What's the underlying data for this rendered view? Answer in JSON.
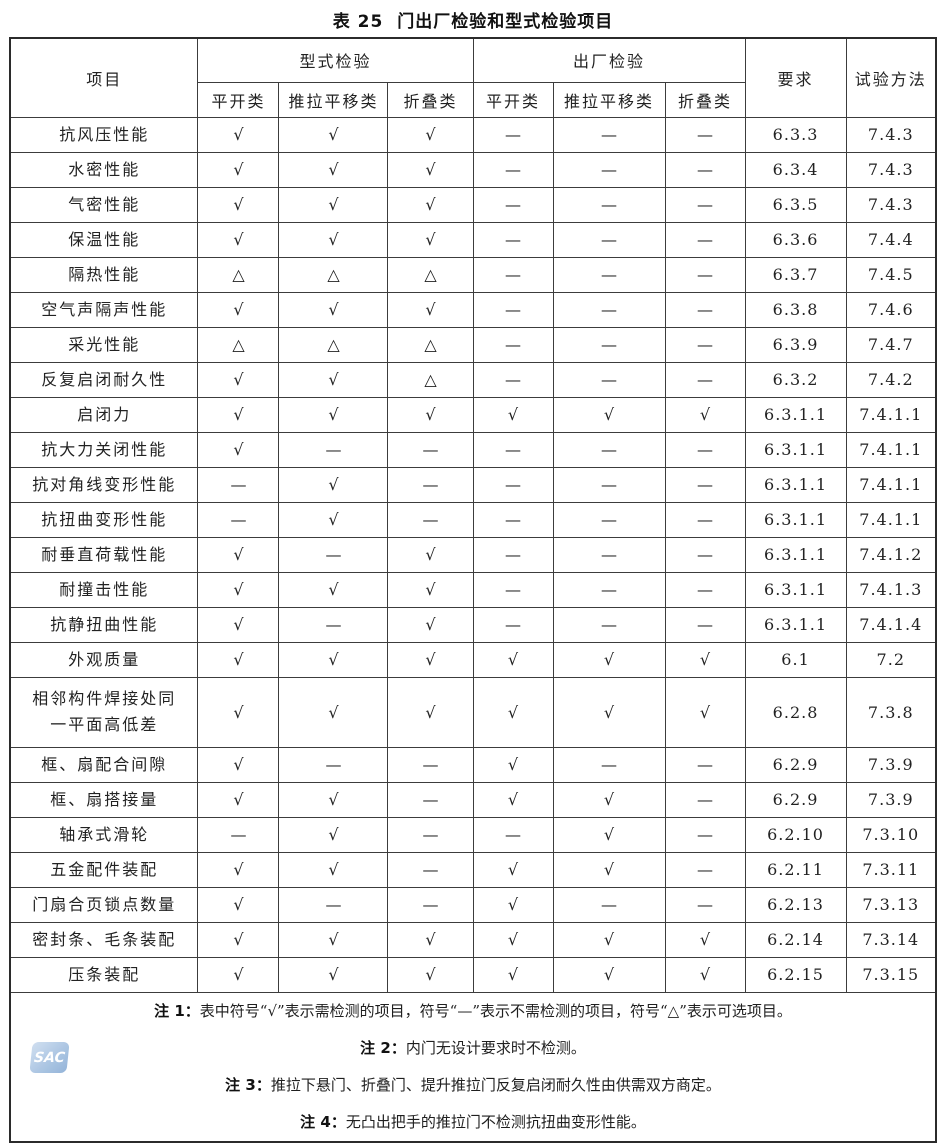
{
  "title": {
    "prefix": "表 25",
    "main": "门出厂检验和型式检验项目"
  },
  "table": {
    "headers": {
      "item": "项目",
      "type_inspection": "型式检验",
      "factory_inspection": "出厂检验",
      "requirement": "要求",
      "test_method": "试验方法",
      "sub": [
        "平开类",
        "推拉平移类",
        "折叠类",
        "平开类",
        "推拉平移类",
        "折叠类"
      ]
    },
    "rows": [
      {
        "item": "抗风压性能",
        "type": [
          "√",
          "√",
          "√"
        ],
        "factory": [
          "—",
          "—",
          "—"
        ],
        "req": "6.3.3",
        "method": "7.4.3"
      },
      {
        "item": "水密性能",
        "type": [
          "√",
          "√",
          "√"
        ],
        "factory": [
          "—",
          "—",
          "—"
        ],
        "req": "6.3.4",
        "method": "7.4.3"
      },
      {
        "item": "气密性能",
        "type": [
          "√",
          "√",
          "√"
        ],
        "factory": [
          "—",
          "—",
          "—"
        ],
        "req": "6.3.5",
        "method": "7.4.3"
      },
      {
        "item": "保温性能",
        "type": [
          "√",
          "√",
          "√"
        ],
        "factory": [
          "—",
          "—",
          "—"
        ],
        "req": "6.3.6",
        "method": "7.4.4"
      },
      {
        "item": "隔热性能",
        "type": [
          "△",
          "△",
          "△"
        ],
        "factory": [
          "—",
          "—",
          "—"
        ],
        "req": "6.3.7",
        "method": "7.4.5"
      },
      {
        "item": "空气声隔声性能",
        "type": [
          "√",
          "√",
          "√"
        ],
        "factory": [
          "—",
          "—",
          "—"
        ],
        "req": "6.3.8",
        "method": "7.4.6"
      },
      {
        "item": "采光性能",
        "type": [
          "△",
          "△",
          "△"
        ],
        "factory": [
          "—",
          "—",
          "—"
        ],
        "req": "6.3.9",
        "method": "7.4.7"
      },
      {
        "item": "反复启闭耐久性",
        "type": [
          "√",
          "√",
          "△"
        ],
        "factory": [
          "—",
          "—",
          "—"
        ],
        "req": "6.3.2",
        "method": "7.4.2"
      },
      {
        "item": "启闭力",
        "type": [
          "√",
          "√",
          "√"
        ],
        "factory": [
          "√",
          "√",
          "√"
        ],
        "req": "6.3.1.1",
        "method": "7.4.1.1"
      },
      {
        "item": "抗大力关闭性能",
        "type": [
          "√",
          "—",
          "—"
        ],
        "factory": [
          "—",
          "—",
          "—"
        ],
        "req": "6.3.1.1",
        "method": "7.4.1.1"
      },
      {
        "item": "抗对角线变形性能",
        "type": [
          "—",
          "√",
          "—"
        ],
        "factory": [
          "—",
          "—",
          "—"
        ],
        "req": "6.3.1.1",
        "method": "7.4.1.1"
      },
      {
        "item": "抗扭曲变形性能",
        "type": [
          "—",
          "√",
          "—"
        ],
        "factory": [
          "—",
          "—",
          "—"
        ],
        "req": "6.3.1.1",
        "method": "7.4.1.1"
      },
      {
        "item": "耐垂直荷载性能",
        "type": [
          "√",
          "—",
          "√"
        ],
        "factory": [
          "—",
          "—",
          "—"
        ],
        "req": "6.3.1.1",
        "method": "7.4.1.2"
      },
      {
        "item": "耐撞击性能",
        "type": [
          "√",
          "√",
          "√"
        ],
        "factory": [
          "—",
          "—",
          "—"
        ],
        "req": "6.3.1.1",
        "method": "7.4.1.3"
      },
      {
        "item": "抗静扭曲性能",
        "type": [
          "√",
          "—",
          "√"
        ],
        "factory": [
          "—",
          "—",
          "—"
        ],
        "req": "6.3.1.1",
        "method": "7.4.1.4"
      },
      {
        "item": "外观质量",
        "type": [
          "√",
          "√",
          "√"
        ],
        "factory": [
          "√",
          "√",
          "√"
        ],
        "req": "6.1",
        "method": "7.2"
      },
      {
        "item": "相邻构件焊接处同\n一平面高低差",
        "type": [
          "√",
          "√",
          "√"
        ],
        "factory": [
          "√",
          "√",
          "√"
        ],
        "req": "6.2.8",
        "method": "7.3.8"
      },
      {
        "item": "框、扇配合间隙",
        "type": [
          "√",
          "—",
          "—"
        ],
        "factory": [
          "√",
          "—",
          "—"
        ],
        "req": "6.2.9",
        "method": "7.3.9"
      },
      {
        "item": "框、扇搭接量",
        "type": [
          "√",
          "√",
          "—"
        ],
        "factory": [
          "√",
          "√",
          "—"
        ],
        "req": "6.2.9",
        "method": "7.3.9"
      },
      {
        "item": "轴承式滑轮",
        "type": [
          "—",
          "√",
          "—"
        ],
        "factory": [
          "—",
          "√",
          "—"
        ],
        "req": "6.2.10",
        "method": "7.3.10"
      },
      {
        "item": "五金配件装配",
        "type": [
          "√",
          "√",
          "—"
        ],
        "factory": [
          "√",
          "√",
          "—"
        ],
        "req": "6.2.11",
        "method": "7.3.11"
      },
      {
        "item": "门扇合页锁点数量",
        "type": [
          "√",
          "—",
          "—"
        ],
        "factory": [
          "√",
          "—",
          "—"
        ],
        "req": "6.2.13",
        "method": "7.3.13"
      },
      {
        "item": "密封条、毛条装配",
        "type": [
          "√",
          "√",
          "√"
        ],
        "factory": [
          "√",
          "√",
          "√"
        ],
        "req": "6.2.14",
        "method": "7.3.14"
      },
      {
        "item": "压条装配",
        "type": [
          "√",
          "√",
          "√"
        ],
        "factory": [
          "√",
          "√",
          "√"
        ],
        "req": "6.2.15",
        "method": "7.3.15"
      }
    ],
    "notes": [
      {
        "label": "注 1：",
        "text": "表中符号“√”表示需检测的项目，符号“—”表示不需检测的项目，符号“△”表示可选项目。"
      },
      {
        "label": "注 2：",
        "text": "内门无设计要求时不检测。"
      },
      {
        "label": "注 3：",
        "text": "推拉下悬门、折叠门、提升推拉门反复启闭耐久性由供需双方商定。"
      },
      {
        "label": "注 4：",
        "text": "无凸出把手的推拉门不检测抗扭曲变形性能。"
      }
    ]
  },
  "watermark": {
    "text": "SAC",
    "color": "#a9c4e2"
  },
  "colors": {
    "border": "#2b2b2b",
    "check": "#4a4a4a",
    "dash": "#8c8c8c",
    "triangle": "#666666"
  }
}
